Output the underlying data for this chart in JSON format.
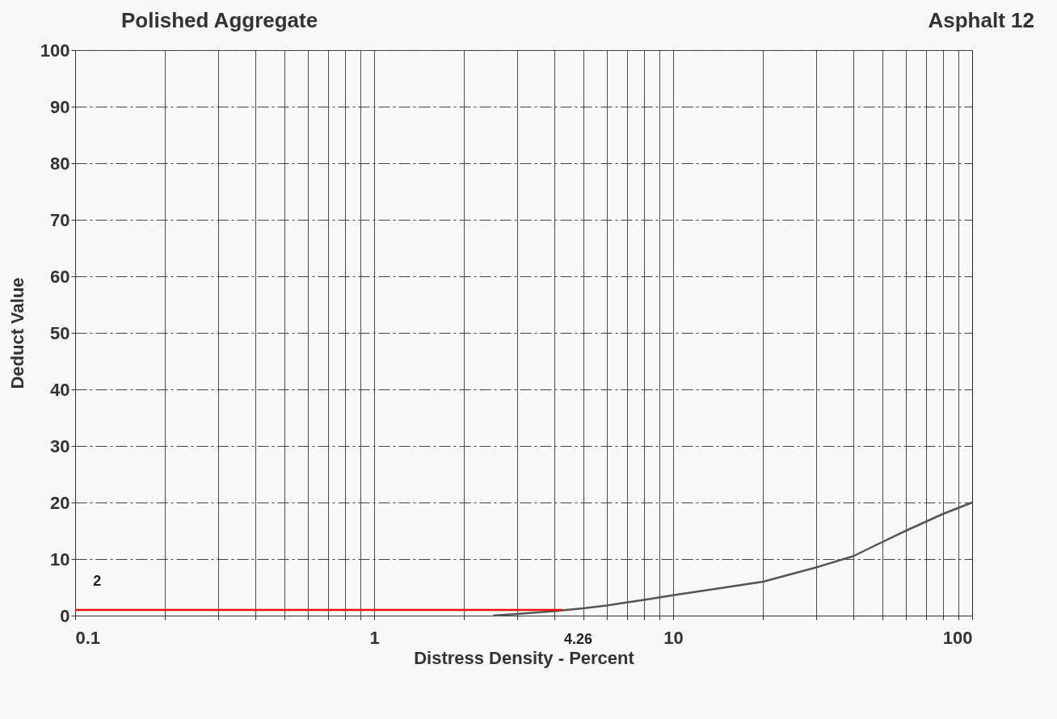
{
  "chart_data": {
    "type": "line",
    "title": "Polished Aggregate",
    "subtitle": "Asphalt 12",
    "xlabel": "Distress Density - Percent",
    "ylabel": "Deduct Value",
    "log": "x",
    "grid": true,
    "marker": "none",
    "line_style": "solid",
    "xlim": [
      0.1,
      100
    ],
    "ylim": [
      0,
      100
    ],
    "xticks": [
      0.1,
      {
        "value": 0.2,
        "label": null
      },
      {
        "value": 0.3,
        "label": null
      },
      {
        "value": 0.4,
        "label": null
      },
      {
        "value": 0.5,
        "label": null
      },
      {
        "value": 0.6,
        "label": null
      },
      {
        "value": 0.7,
        "label": null
      },
      {
        "value": 0.8,
        "label": null
      },
      {
        "value": 0.9,
        "label": null
      },
      1,
      {
        "value": 2,
        "label": null
      },
      {
        "value": 3,
        "label": null
      },
      {
        "value": 4,
        "label": null
      },
      {
        "value": 5,
        "label": null
      },
      {
        "value": 6,
        "label": null
      },
      {
        "value": 7,
        "label": null
      },
      {
        "value": 8,
        "label": null
      },
      {
        "value": 9,
        "label": null
      },
      10,
      {
        "value": 20,
        "label": null
      },
      {
        "value": 30,
        "label": null
      },
      {
        "value": 40,
        "label": null
      },
      {
        "value": 50,
        "label": null
      },
      {
        "value": 60,
        "label": null
      },
      {
        "value": 70,
        "label": null
      },
      {
        "value": 80,
        "label": null
      },
      {
        "value": 90,
        "label": null
      },
      100
    ],
    "yticks": [
      0,
      10,
      20,
      30,
      40,
      50,
      60,
      70,
      80,
      90,
      100
    ],
    "series": [
      {
        "color": "#555555",
        "x": [
          2.5,
          3,
          4,
          5,
          6,
          8,
          10,
          15,
          20,
          30,
          40,
          50,
          60,
          80,
          100
        ],
        "values": [
          0,
          0.3,
          0.8,
          1.3,
          1.8,
          2.8,
          3.6,
          5,
          6,
          8.5,
          10.5,
          13,
          15,
          18,
          20
        ]
      },
      {
        "color": "#ee1111",
        "x": [
          0.1,
          4.26
        ],
        "values": [
          1,
          1
        ]
      }
    ],
    "annotations": [
      "2",
      "4.26"
    ]
  }
}
